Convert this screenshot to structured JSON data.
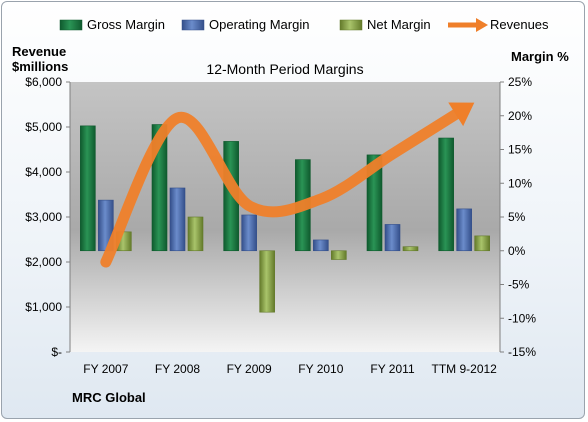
{
  "chart_data": {
    "type": "bar",
    "title": "12-Month Period Margins",
    "company_label": "MRC Global",
    "left_axis": {
      "label_line1": "Revenue",
      "label_line2": "$millions",
      "ylim": [
        0,
        6000
      ],
      "ticks": [
        0,
        1000,
        2000,
        3000,
        4000,
        5000,
        6000
      ],
      "tick_labels": [
        "$-",
        "$1,000",
        "$2,000",
        "$3,000",
        "$4,000",
        "$5,000",
        "$6,000"
      ]
    },
    "right_axis": {
      "label": "Margin %",
      "ylim": [
        -15,
        25
      ],
      "ticks": [
        -15,
        -10,
        -5,
        0,
        5,
        10,
        15,
        20,
        25
      ],
      "tick_labels": [
        "-15%",
        "-10%",
        "-5%",
        "0%",
        "5%",
        "10%",
        "15%",
        "20%",
        "25%"
      ]
    },
    "categories": [
      "FY 2007",
      "FY 2008",
      "FY 2009",
      "FY 2010",
      "FY 2011",
      "TTM 9-2012"
    ],
    "series": [
      {
        "name": "Gross Margin",
        "type": "bar",
        "axis": "right",
        "color": "#1e7a45",
        "values": [
          18.5,
          18.7,
          16.2,
          13.5,
          14.2,
          16.7
        ]
      },
      {
        "name": "Operating Margin",
        "type": "bar",
        "axis": "right",
        "color": "#4f72b8",
        "values": [
          7.5,
          9.3,
          5.3,
          1.6,
          3.9,
          6.2
        ]
      },
      {
        "name": "Net Margin",
        "type": "bar",
        "axis": "right",
        "color": "#93b050",
        "values": [
          2.8,
          5.0,
          -9.1,
          -1.3,
          0.6,
          2.2
        ]
      },
      {
        "name": "Revenues",
        "type": "line",
        "axis": "left",
        "color": "#ef7f2a",
        "values": [
          2000,
          5200,
          3250,
          3400,
          4400,
          5400
        ]
      }
    ],
    "legend_position": "top",
    "grid": false
  }
}
